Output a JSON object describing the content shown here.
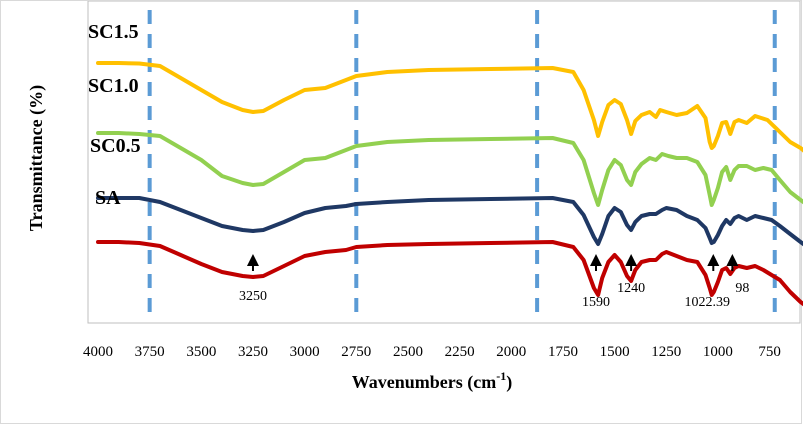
{
  "chart_data": {
    "type": "line",
    "title": "",
    "xlabel": "Wavenumbers (cm",
    "xlabel_sup": "-1",
    "xlabel_close": ")",
    "ylabel": "Transmittance (%)",
    "xlim": [
      4000,
      500
    ],
    "x_reversed": true,
    "x_ticks": [
      "4000",
      "3750",
      "3500",
      "3250",
      "3000",
      "2750",
      "2500",
      "2250",
      "2000",
      "1750",
      "1500",
      "1250",
      "1000",
      "750"
    ],
    "y_ticks_shown": false,
    "grid": false,
    "legend": "none",
    "reference_lines": [
      3750,
      2750,
      1875,
      725
    ],
    "reference_line_color": "#5B9BD5",
    "series": [
      {
        "name": "SC1.5",
        "color": "#FFC000",
        "points": [
          [
            4000,
            33
          ],
          [
            3900,
            33
          ],
          [
            3800,
            33.5
          ],
          [
            3700,
            36
          ],
          [
            3600,
            48
          ],
          [
            3500,
            60
          ],
          [
            3400,
            72
          ],
          [
            3300,
            80
          ],
          [
            3250,
            82
          ],
          [
            3200,
            81
          ],
          [
            3100,
            70
          ],
          [
            3000,
            60
          ],
          [
            2900,
            58
          ],
          [
            2800,
            50
          ],
          [
            2750,
            46
          ],
          [
            2600,
            42
          ],
          [
            2400,
            40
          ],
          [
            2100,
            39
          ],
          [
            1800,
            38
          ],
          [
            1700,
            42
          ],
          [
            1650,
            60
          ],
          [
            1600,
            90
          ],
          [
            1580,
            106
          ],
          [
            1560,
            92
          ],
          [
            1530,
            75
          ],
          [
            1500,
            70
          ],
          [
            1470,
            74
          ],
          [
            1440,
            90
          ],
          [
            1420,
            104
          ],
          [
            1400,
            91
          ],
          [
            1370,
            85
          ],
          [
            1330,
            82
          ],
          [
            1300,
            87
          ],
          [
            1280,
            80
          ],
          [
            1250,
            82
          ],
          [
            1200,
            85
          ],
          [
            1150,
            83
          ],
          [
            1100,
            76
          ],
          [
            1060,
            88
          ],
          [
            1040,
            112
          ],
          [
            1030,
            118
          ],
          [
            1020,
            116
          ],
          [
            1000,
            106
          ],
          [
            980,
            93
          ],
          [
            960,
            92
          ],
          [
            940,
            104
          ],
          [
            920,
            92
          ],
          [
            900,
            90
          ],
          [
            860,
            93
          ],
          [
            820,
            86
          ],
          [
            760,
            90
          ],
          [
            700,
            102
          ],
          [
            650,
            112
          ],
          [
            600,
            118
          ],
          [
            560,
            125
          ]
        ]
      },
      {
        "name": "SC1.0",
        "color": "#92D050",
        "points": [
          [
            4000,
            103
          ],
          [
            3900,
            103
          ],
          [
            3800,
            104
          ],
          [
            3700,
            106
          ],
          [
            3600,
            118
          ],
          [
            3500,
            130
          ],
          [
            3400,
            146
          ],
          [
            3300,
            153
          ],
          [
            3250,
            155
          ],
          [
            3200,
            154
          ],
          [
            3100,
            142
          ],
          [
            3000,
            130
          ],
          [
            2900,
            128
          ],
          [
            2800,
            120
          ],
          [
            2750,
            116
          ],
          [
            2600,
            112
          ],
          [
            2400,
            110
          ],
          [
            2100,
            109
          ],
          [
            1800,
            108
          ],
          [
            1700,
            113
          ],
          [
            1650,
            130
          ],
          [
            1600,
            163
          ],
          [
            1580,
            175
          ],
          [
            1560,
            160
          ],
          [
            1530,
            140
          ],
          [
            1500,
            130
          ],
          [
            1470,
            135
          ],
          [
            1440,
            150
          ],
          [
            1420,
            155
          ],
          [
            1400,
            142
          ],
          [
            1370,
            134
          ],
          [
            1330,
            128
          ],
          [
            1300,
            130
          ],
          [
            1270,
            124
          ],
          [
            1240,
            126
          ],
          [
            1200,
            128
          ],
          [
            1150,
            128
          ],
          [
            1100,
            132
          ],
          [
            1060,
            145
          ],
          [
            1040,
            165
          ],
          [
            1030,
            175
          ],
          [
            1020,
            170
          ],
          [
            1000,
            158
          ],
          [
            980,
            142
          ],
          [
            960,
            137
          ],
          [
            940,
            150
          ],
          [
            920,
            140
          ],
          [
            900,
            136
          ],
          [
            860,
            136
          ],
          [
            820,
            140
          ],
          [
            780,
            138
          ],
          [
            740,
            140
          ],
          [
            700,
            150
          ],
          [
            650,
            162
          ],
          [
            600,
            170
          ],
          [
            560,
            176
          ]
        ]
      },
      {
        "name": "SC0.5",
        "color": "#1F3864",
        "points": [
          [
            4000,
            168
          ],
          [
            3900,
            168
          ],
          [
            3800,
            168
          ],
          [
            3700,
            172
          ],
          [
            3600,
            180
          ],
          [
            3500,
            188
          ],
          [
            3400,
            196
          ],
          [
            3300,
            200
          ],
          [
            3250,
            201
          ],
          [
            3200,
            200
          ],
          [
            3100,
            192
          ],
          [
            3000,
            183
          ],
          [
            2900,
            178
          ],
          [
            2800,
            176
          ],
          [
            2750,
            174
          ],
          [
            2600,
            172
          ],
          [
            2400,
            170
          ],
          [
            2100,
            169
          ],
          [
            1800,
            168
          ],
          [
            1700,
            172
          ],
          [
            1650,
            185
          ],
          [
            1600,
            207
          ],
          [
            1580,
            214
          ],
          [
            1560,
            204
          ],
          [
            1530,
            186
          ],
          [
            1500,
            178
          ],
          [
            1470,
            182
          ],
          [
            1440,
            195
          ],
          [
            1420,
            200
          ],
          [
            1400,
            192
          ],
          [
            1370,
            186
          ],
          [
            1330,
            184
          ],
          [
            1300,
            184
          ],
          [
            1270,
            180
          ],
          [
            1250,
            178
          ],
          [
            1200,
            180
          ],
          [
            1150,
            186
          ],
          [
            1100,
            190
          ],
          [
            1060,
            198
          ],
          [
            1040,
            208
          ],
          [
            1030,
            213
          ],
          [
            1020,
            212
          ],
          [
            1000,
            205
          ],
          [
            980,
            196
          ],
          [
            960,
            190
          ],
          [
            940,
            194
          ],
          [
            920,
            188
          ],
          [
            900,
            186
          ],
          [
            860,
            190
          ],
          [
            820,
            186
          ],
          [
            780,
            188
          ],
          [
            740,
            190
          ],
          [
            700,
            196
          ],
          [
            650,
            204
          ],
          [
            600,
            212
          ],
          [
            560,
            218
          ]
        ]
      },
      {
        "name": "SA",
        "color": "#C00000",
        "points": [
          [
            4000,
            212
          ],
          [
            3900,
            212
          ],
          [
            3800,
            213
          ],
          [
            3700,
            216
          ],
          [
            3600,
            225
          ],
          [
            3500,
            234
          ],
          [
            3400,
            242
          ],
          [
            3300,
            246
          ],
          [
            3250,
            247
          ],
          [
            3200,
            246
          ],
          [
            3100,
            236
          ],
          [
            3000,
            226
          ],
          [
            2900,
            222
          ],
          [
            2800,
            220
          ],
          [
            2750,
            217
          ],
          [
            2600,
            215
          ],
          [
            2400,
            214
          ],
          [
            2100,
            213
          ],
          [
            1800,
            212
          ],
          [
            1700,
            217
          ],
          [
            1650,
            230
          ],
          [
            1600,
            258
          ],
          [
            1580,
            265
          ],
          [
            1560,
            248
          ],
          [
            1530,
            232
          ],
          [
            1500,
            225
          ],
          [
            1470,
            232
          ],
          [
            1440,
            246
          ],
          [
            1420,
            251
          ],
          [
            1400,
            240
          ],
          [
            1370,
            232
          ],
          [
            1330,
            230
          ],
          [
            1300,
            230
          ],
          [
            1270,
            224
          ],
          [
            1250,
            222
          ],
          [
            1200,
            226
          ],
          [
            1150,
            230
          ],
          [
            1100,
            232
          ],
          [
            1060,
            245
          ],
          [
            1040,
            258
          ],
          [
            1030,
            265
          ],
          [
            1020,
            262
          ],
          [
            1000,
            252
          ],
          [
            980,
            240
          ],
          [
            960,
            238
          ],
          [
            940,
            244
          ],
          [
            920,
            238
          ],
          [
            900,
            236
          ],
          [
            860,
            238
          ],
          [
            820,
            236
          ],
          [
            780,
            240
          ],
          [
            740,
            245
          ],
          [
            700,
            250
          ],
          [
            650,
            262
          ],
          [
            600,
            272
          ],
          [
            560,
            278
          ]
        ]
      }
    ],
    "series_labels": [
      "SC1.5",
      "SC1.0",
      "SC0.5",
      "SA"
    ],
    "annotations": [
      {
        "x": 3250,
        "text": "3250"
      },
      {
        "x": 1590,
        "text": "1590"
      },
      {
        "x": 1420,
        "text": "1240"
      },
      {
        "x": 1022.39,
        "text": "1022.39"
      },
      {
        "x": 930,
        "text": "98"
      }
    ]
  }
}
